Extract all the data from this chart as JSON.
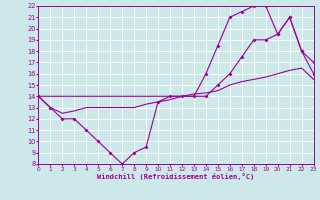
{
  "xlabel": "Windchill (Refroidissement éolien,°C)",
  "bg_color": "#cce8e8",
  "grid_color": "#ffffff",
  "line_color": "#990099",
  "xlim": [
    0,
    23
  ],
  "ylim": [
    8,
    22
  ],
  "xticks": [
    0,
    1,
    2,
    3,
    4,
    5,
    6,
    7,
    8,
    9,
    10,
    11,
    12,
    13,
    14,
    15,
    16,
    17,
    18,
    19,
    20,
    21,
    22,
    23
  ],
  "yticks": [
    8,
    9,
    10,
    11,
    12,
    13,
    14,
    15,
    16,
    17,
    18,
    19,
    20,
    21,
    22
  ],
  "line1_x": [
    0,
    1,
    2,
    3,
    4,
    5,
    6,
    7,
    8,
    9,
    10,
    11,
    12,
    13,
    14,
    15,
    16,
    17,
    18,
    19,
    20,
    21,
    22,
    23
  ],
  "line1_y": [
    14,
    13,
    12,
    12,
    11,
    10,
    9,
    8,
    9,
    9.5,
    13.5,
    14,
    14,
    14,
    16,
    18.5,
    21,
    21.5,
    22,
    22,
    19.5,
    21,
    18,
    16
  ],
  "line2_x": [
    0,
    1,
    2,
    3,
    4,
    5,
    6,
    7,
    8,
    9,
    10,
    11,
    12,
    13,
    14,
    15,
    16,
    17,
    18,
    19,
    20,
    21,
    22,
    23
  ],
  "line2_y": [
    14,
    13,
    12.5,
    12.7,
    13,
    13,
    13,
    13,
    13,
    13.3,
    13.5,
    13.7,
    14,
    14.2,
    14.3,
    14.5,
    15,
    15.3,
    15.5,
    15.7,
    16,
    16.3,
    16.5,
    15.5
  ],
  "line3_x": [
    0,
    14,
    15,
    16,
    17,
    18,
    19,
    20,
    21,
    22,
    23
  ],
  "line3_y": [
    14,
    14,
    15,
    16,
    17.5,
    19,
    19,
    19.5,
    21,
    18,
    17
  ]
}
